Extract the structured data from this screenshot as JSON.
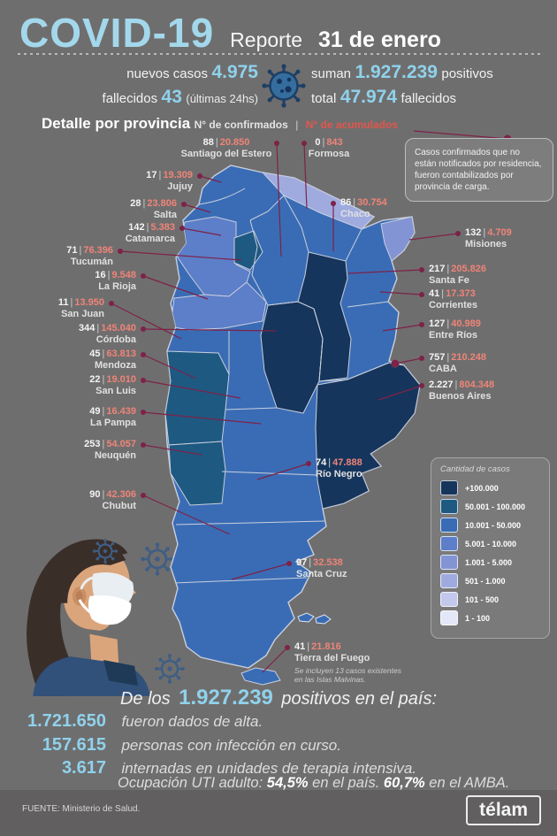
{
  "header": {
    "title": "COVID-19",
    "report_label": "Reporte",
    "report_date": "31 de enero",
    "stats": {
      "new_cases_label": "nuevos casos",
      "new_cases": "4.975",
      "deaths_label": "fallecidos",
      "deaths_24h": "43",
      "deaths_note": "(últimas 24hs)",
      "total_pos_prefix": "suman",
      "total_positives": "1.927.239",
      "total_pos_suffix": "positivos",
      "total_deaths_prefix": "total",
      "total_deaths": "47.974",
      "total_deaths_suffix": "fallecidos"
    }
  },
  "section": {
    "title": "Detalle por provincia",
    "subtitle_confirmed": "N° de confirmados",
    "separator": "|",
    "subtitle_accumulated": "N° de acumulados",
    "note": "Casos confirmados que no están notificados por residencia, fueron contabilizados por provincia de carga."
  },
  "map": {
    "separator": "|",
    "callout_color": "#7d2248",
    "border_color": "#c9cfdd",
    "labels": {
      "santiago": {
        "name": "Santiago del Estero",
        "confirmed": "88",
        "accumulated": "20.850"
      },
      "formosa": {
        "name": "Formosa",
        "confirmed": "0",
        "accumulated": "843"
      },
      "jujuy": {
        "name": "Jujuy",
        "confirmed": "17",
        "accumulated": "19.309"
      },
      "chaco": {
        "name": "Chaco",
        "confirmed": "86",
        "accumulated": "30.754"
      },
      "salta": {
        "name": "Salta",
        "confirmed": "28",
        "accumulated": "23.806"
      },
      "catamarca": {
        "name": "Catamarca",
        "confirmed": "142",
        "accumulated": "5.383"
      },
      "misiones": {
        "name": "Misiones",
        "confirmed": "132",
        "accumulated": "4.709"
      },
      "tucuman": {
        "name": "Tucumán",
        "confirmed": "71",
        "accumulated": "76.396"
      },
      "santa_fe": {
        "name": "Santa Fe",
        "confirmed": "217",
        "accumulated": "205.826"
      },
      "la_rioja": {
        "name": "La Rioja",
        "confirmed": "16",
        "accumulated": "9.548"
      },
      "corrientes": {
        "name": "Corrientes",
        "confirmed": "41",
        "accumulated": "17.373"
      },
      "san_juan": {
        "name": "San Juan",
        "confirmed": "11",
        "accumulated": "13.950"
      },
      "cordoba": {
        "name": "Córdoba",
        "confirmed": "344",
        "accumulated": "145.040"
      },
      "entre_rios": {
        "name": "Entre Ríos",
        "confirmed": "127",
        "accumulated": "40.989"
      },
      "mendoza": {
        "name": "Mendoza",
        "confirmed": "45",
        "accumulated": "63.813"
      },
      "caba": {
        "name": "CABA",
        "confirmed": "757",
        "accumulated": "210.248"
      },
      "san_luis": {
        "name": "San Luis",
        "confirmed": "22",
        "accumulated": "19.010"
      },
      "buenos_aires": {
        "name": "Buenos Aires",
        "confirmed": "2.227",
        "accumulated": "804.348"
      },
      "la_pampa": {
        "name": "La Pampa",
        "confirmed": "49",
        "accumulated": "16.439"
      },
      "neuquen": {
        "name": "Neuquén",
        "confirmed": "253",
        "accumulated": "54.057"
      },
      "rio_negro": {
        "name": "Río Negro",
        "confirmed": "74",
        "accumulated": "47.888"
      },
      "chubut": {
        "name": "Chubut",
        "confirmed": "90",
        "accumulated": "42.306"
      },
      "santa_cruz": {
        "name": "Santa Cruz",
        "confirmed": "97",
        "accumulated": "32.538"
      },
      "tierra_del_fuego": {
        "name": "Tierra del Fuego",
        "confirmed": "41",
        "accumulated": "21.816",
        "note": "Se incluyen 13 casos existentes en las Islas Malvinas."
      }
    },
    "province_colors": {
      "base": "#3a6cb5",
      "jujuy": "#3a6cb5",
      "salta": "#3a6cb5",
      "chaco": "#3a6cb5",
      "santiago": "#3a6cb5",
      "san_juan": "#3a6cb5",
      "san_luis": "#3a6cb5",
      "corrientes": "#3a6cb5",
      "entre_rios": "#3a6cb5",
      "la_pampa": "#3a6cb5",
      "rio_negro": "#3a6cb5",
      "chubut": "#3a6cb5",
      "santa_cruz": "#3a6cb5",
      "tierra_del_fuego": "#3a6cb5",
      "malvinas": "#3a6cb5",
      "formosa": "#9fabdf",
      "misiones": "#8294d3",
      "catamarca": "#5d7ec8",
      "la_rioja": "#5d7ec8",
      "tucuman": "#1e5982",
      "mendoza": "#1e5982",
      "neuquen": "#1e5982",
      "cordoba": "#16355c",
      "santa_fe": "#16355c",
      "buenos_aires": "#16355c",
      "caba": "#16355c"
    }
  },
  "legend": {
    "title": "Cantidad de casos",
    "items": [
      {
        "range": "+100.000",
        "color": "#16355c"
      },
      {
        "range": "50.001 - 100.000",
        "color": "#1e5982"
      },
      {
        "range": "10.001 - 50.000",
        "color": "#3a6cb5"
      },
      {
        "range": "5.001 - 10.000",
        "color": "#5d7ec8"
      },
      {
        "range": "1.001 - 5.000",
        "color": "#8294d3"
      },
      {
        "range": "501 - 1.000",
        "color": "#9fabdf"
      },
      {
        "range": "101 - 500",
        "color": "#c3c9ec"
      },
      {
        "range": "1 - 100",
        "color": "#e4e7f7"
      }
    ]
  },
  "summary": {
    "prefix": "De los",
    "total": "1.927.239",
    "suffix": "positivos en el país:",
    "rows": [
      {
        "value": "1.721.650",
        "text": "fueron dados de alta."
      },
      {
        "value": "157.615",
        "text": "personas con infección en curso."
      },
      {
        "value": "3.617",
        "text": "internadas en unidades de terapia intensiva."
      }
    ],
    "uti_prefix": "Ocupación UTI adulto:",
    "uti_country": "54,5%",
    "uti_mid": "en el país.",
    "uti_amba": "60,7%",
    "uti_suffix": "en el AMBA."
  },
  "footer": {
    "source": "FUENTE: Ministerio de Salud.",
    "logo": "télam"
  },
  "chart_data": {
    "type": "choropleth",
    "title": "COVID-19 Reporte 31 de enero — Detalle por provincia (Argentina)",
    "metrics": [
      "N° de confirmados (últimas 24hs)",
      "N° de acumulados"
    ],
    "provinces": [
      {
        "name": "Jujuy",
        "confirmed": 17,
        "accumulated": 19309
      },
      {
        "name": "Salta",
        "confirmed": 28,
        "accumulated": 23806
      },
      {
        "name": "Formosa",
        "confirmed": 0,
        "accumulated": 843
      },
      {
        "name": "Chaco",
        "confirmed": 86,
        "accumulated": 30754
      },
      {
        "name": "Santiago del Estero",
        "confirmed": 88,
        "accumulated": 20850
      },
      {
        "name": "Misiones",
        "confirmed": 132,
        "accumulated": 4709
      },
      {
        "name": "Tucumán",
        "confirmed": 71,
        "accumulated": 76396
      },
      {
        "name": "Catamarca",
        "confirmed": 142,
        "accumulated": 5383
      },
      {
        "name": "La Rioja",
        "confirmed": 16,
        "accumulated": 9548
      },
      {
        "name": "Santa Fe",
        "confirmed": 217,
        "accumulated": 205826
      },
      {
        "name": "Corrientes",
        "confirmed": 41,
        "accumulated": 17373
      },
      {
        "name": "San Juan",
        "confirmed": 11,
        "accumulated": 13950
      },
      {
        "name": "Córdoba",
        "confirmed": 344,
        "accumulated": 145040
      },
      {
        "name": "Entre Ríos",
        "confirmed": 127,
        "accumulated": 40989
      },
      {
        "name": "Mendoza",
        "confirmed": 45,
        "accumulated": 63813
      },
      {
        "name": "San Luis",
        "confirmed": 22,
        "accumulated": 19010
      },
      {
        "name": "CABA",
        "confirmed": 757,
        "accumulated": 210248
      },
      {
        "name": "Buenos Aires",
        "confirmed": 2227,
        "accumulated": 804348
      },
      {
        "name": "La Pampa",
        "confirmed": 49,
        "accumulated": 16439
      },
      {
        "name": "Neuquén",
        "confirmed": 253,
        "accumulated": 54057
      },
      {
        "name": "Río Negro",
        "confirmed": 74,
        "accumulated": 47888
      },
      {
        "name": "Chubut",
        "confirmed": 90,
        "accumulated": 42306
      },
      {
        "name": "Santa Cruz",
        "confirmed": 97,
        "accumulated": 32538
      },
      {
        "name": "Tierra del Fuego",
        "confirmed": 41,
        "accumulated": 21816
      }
    ],
    "legend": {
      "title": "Cantidad de casos",
      "buckets": [
        "+100.000",
        "50.001 - 100.000",
        "10.001 - 50.000",
        "5.001 - 10.000",
        "1.001 - 5.000",
        "501 - 1.000",
        "101 - 500",
        "1 - 100"
      ]
    },
    "national": {
      "nuevos_casos": 4975,
      "fallecidos_24h": 43,
      "positivos_total": 1927239,
      "fallecidos_total": 47974,
      "dados_de_alta": 1721650,
      "infeccion_en_curso": 157615,
      "terapia_intensiva": 3617,
      "ocupacion_uti_pais": "54,5%",
      "ocupacion_uti_amba": "60,7%"
    }
  }
}
